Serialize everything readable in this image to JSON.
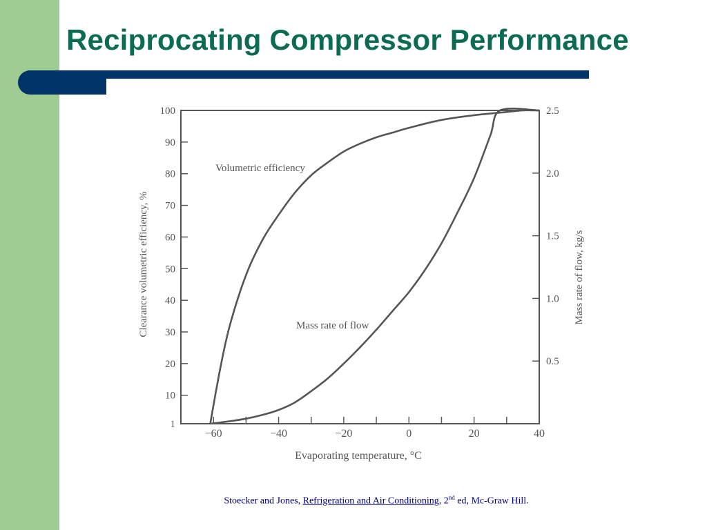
{
  "slide": {
    "title": "Reciprocating  Compressor Performance",
    "accent_color": "#0b6b53",
    "sidebar_color": "#9fcc93",
    "bar_color": "#003366"
  },
  "citation": {
    "authors": "Stoecker and Jones, ",
    "book_title": "Refrigeration and Air Conditioning",
    "edition_number": ", 2",
    "edition_suffix": "nd",
    "edition_rest": " ed, Mc-Graw Hill."
  },
  "chart_data": {
    "type": "line",
    "xlabel": "Evaporating temperature, °C",
    "ylabel_left": "Clearance volumetric efficiency, %",
    "ylabel_right": "Mass rate of flow, kg/s",
    "x_ticks": [
      "−60",
      "−40",
      "−20",
      "0",
      "20",
      "40"
    ],
    "x_tick_values": [
      -60,
      -40,
      -20,
      0,
      20,
      40
    ],
    "y_left_ticks": [
      "1",
      "10",
      "20",
      "30",
      "40",
      "50",
      "60",
      "70",
      "80",
      "90",
      "100"
    ],
    "y_left_tick_values": [
      1,
      10,
      20,
      30,
      40,
      50,
      60,
      70,
      80,
      90,
      100
    ],
    "y_right_ticks": [
      "0.5",
      "1.0",
      "1.5",
      "2.0",
      "2.5"
    ],
    "y_right_tick_values": [
      0.5,
      1.0,
      1.5,
      2.0,
      2.5
    ],
    "xlim": [
      -70,
      40
    ],
    "ylim_left": [
      1,
      100
    ],
    "ylim_right": [
      0,
      2.5
    ],
    "grid": false,
    "series": [
      {
        "name": "Volumetric efficiency",
        "axis": "left",
        "x": [
          -61,
          -58,
          -55,
          -50,
          -45,
          -40,
          -35,
          -30,
          -25,
          -20,
          -15,
          -10,
          -5,
          0,
          10,
          20,
          30,
          35,
          40
        ],
        "y": [
          1,
          18,
          32,
          48,
          59,
          67,
          74,
          79.5,
          83.5,
          87,
          89.5,
          91.5,
          93,
          94.5,
          97,
          98.5,
          99.5,
          100,
          100
        ]
      },
      {
        "name": "Mass rate of flow",
        "axis": "right",
        "x": [
          -61,
          -55,
          -50,
          -45,
          -40,
          -35,
          -30,
          -25,
          -20,
          -15,
          -10,
          -5,
          0,
          5,
          10,
          15,
          20,
          25,
          28,
          40
        ],
        "y": [
          0.0,
          0.02,
          0.04,
          0.07,
          0.11,
          0.17,
          0.26,
          0.36,
          0.48,
          0.61,
          0.75,
          0.9,
          1.05,
          1.23,
          1.44,
          1.69,
          1.96,
          2.3,
          2.5,
          2.5
        ]
      }
    ]
  }
}
